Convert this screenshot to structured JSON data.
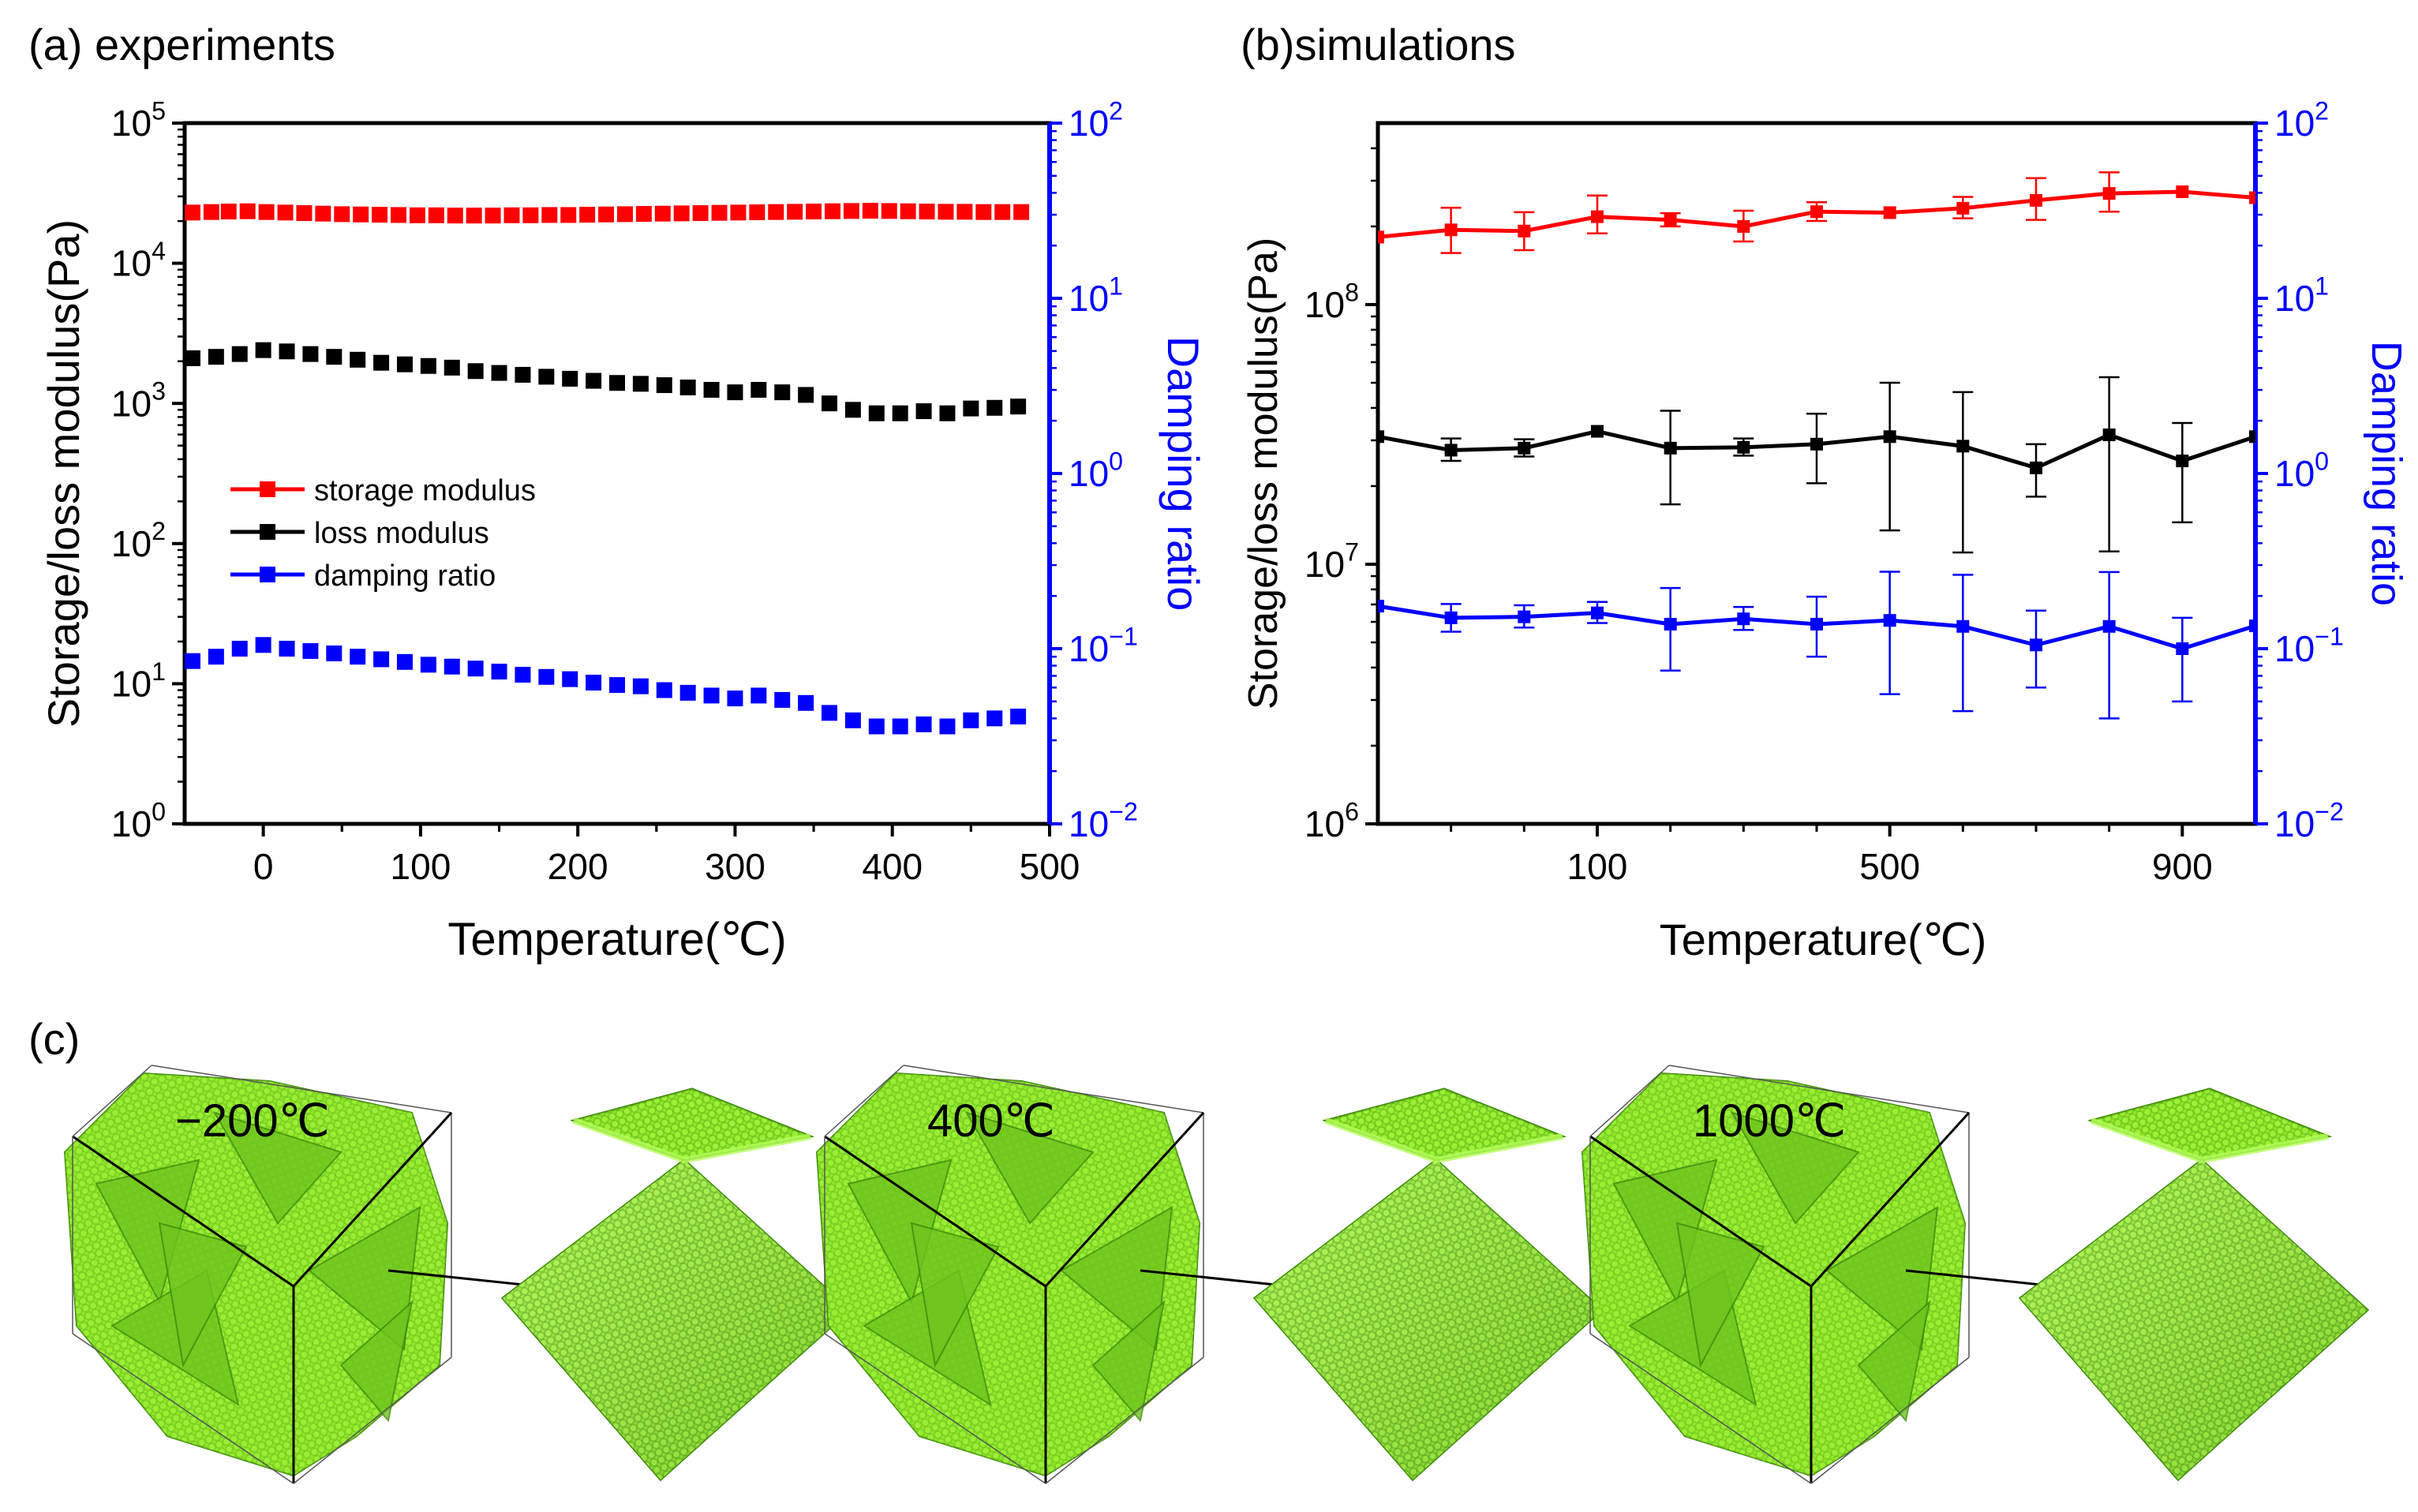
{
  "colors": {
    "storage": "#ff0000",
    "loss": "#000000",
    "damping": "#0000ff",
    "right_axis": "#0000ff",
    "atom_green": "#8ee62a",
    "atom_dark": "#3f8a0c"
  },
  "chart_data": [
    {
      "panel": "a",
      "type": "scatter",
      "title": "(a) experiments",
      "xlabel": "Temperature(℃)",
      "ylabel": "Storage/loss modulus(Pa)",
      "y2label": "Damping ratio",
      "xlim": [
        -50,
        500
      ],
      "xticks": [
        "0",
        "100",
        "200",
        "300",
        "400",
        "500"
      ],
      "xtick_values": [
        0,
        100,
        200,
        300,
        400,
        500
      ],
      "yscale": "log",
      "ylim": [
        1,
        100000
      ],
      "yticks": [
        {
          "base": "10",
          "exp": "0"
        },
        {
          "base": "10",
          "exp": "1"
        },
        {
          "base": "10",
          "exp": "2"
        },
        {
          "base": "10",
          "exp": "3"
        },
        {
          "base": "10",
          "exp": "4"
        },
        {
          "base": "10",
          "exp": "5"
        }
      ],
      "ytick_exps": [
        0,
        1,
        2,
        3,
        4,
        5
      ],
      "y2scale": "log",
      "y2lim": [
        0.01,
        100
      ],
      "y2ticks": [
        {
          "base": "10",
          "exp": "−2"
        },
        {
          "base": "10",
          "exp": "−1"
        },
        {
          "base": "10",
          "exp": "0"
        },
        {
          "base": "10",
          "exp": "1"
        },
        {
          "base": "10",
          "exp": "2"
        }
      ],
      "y2tick_exps": [
        -2,
        -1,
        0,
        1,
        2
      ],
      "legend_position": "center-left",
      "legend": [
        {
          "name": "storage modulus",
          "color": "#ff0000"
        },
        {
          "name": "loss modulus",
          "color": "#000000"
        },
        {
          "name": "damping ratio",
          "color": "#0000ff"
        }
      ],
      "series": [
        {
          "name": "storage modulus",
          "axis": "left",
          "color": "#ff0000",
          "x": [
            -45,
            -33,
            -22,
            -10,
            2,
            14,
            26,
            38,
            50,
            62,
            74,
            86,
            98,
            110,
            122,
            134,
            146,
            158,
            170,
            182,
            194,
            206,
            218,
            230,
            242,
            254,
            266,
            278,
            290,
            302,
            314,
            326,
            338,
            350,
            362,
            374,
            386,
            398,
            410,
            422,
            434,
            446,
            458,
            470,
            482
          ],
          "y": [
            23000,
            23200,
            23400,
            23500,
            23200,
            23000,
            22800,
            22600,
            22400,
            22300,
            22200,
            22100,
            22000,
            22000,
            21900,
            21900,
            21900,
            22000,
            22000,
            22100,
            22100,
            22200,
            22300,
            22400,
            22500,
            22600,
            22700,
            22800,
            22900,
            23000,
            23100,
            23200,
            23300,
            23400,
            23500,
            23600,
            23700,
            23600,
            23500,
            23400,
            23300,
            23300,
            23200,
            23200,
            23200
          ]
        },
        {
          "name": "loss modulus",
          "axis": "left",
          "color": "#000000",
          "x": [
            -45,
            -30,
            -15,
            0,
            15,
            30,
            45,
            60,
            75,
            90,
            105,
            120,
            135,
            150,
            165,
            180,
            195,
            210,
            225,
            240,
            255,
            270,
            285,
            300,
            315,
            330,
            345,
            360,
            375,
            390,
            405,
            420,
            435,
            450,
            465,
            480
          ],
          "y": [
            2100,
            2150,
            2250,
            2400,
            2350,
            2250,
            2150,
            2050,
            1950,
            1900,
            1850,
            1800,
            1700,
            1650,
            1600,
            1550,
            1500,
            1450,
            1400,
            1380,
            1350,
            1300,
            1250,
            1200,
            1250,
            1200,
            1150,
            1000,
            900,
            850,
            850,
            880,
            850,
            920,
            930,
            950
          ]
        },
        {
          "name": "damping ratio",
          "axis": "right",
          "color": "#0000ff",
          "x": [
            -45,
            -30,
            -15,
            0,
            15,
            30,
            45,
            60,
            75,
            90,
            105,
            120,
            135,
            150,
            165,
            180,
            195,
            210,
            225,
            240,
            255,
            270,
            285,
            300,
            315,
            330,
            345,
            360,
            375,
            390,
            405,
            420,
            435,
            450,
            465,
            480
          ],
          "y": [
            0.085,
            0.09,
            0.1,
            0.105,
            0.1,
            0.097,
            0.094,
            0.09,
            0.087,
            0.084,
            0.081,
            0.079,
            0.077,
            0.074,
            0.071,
            0.069,
            0.067,
            0.064,
            0.062,
            0.061,
            0.058,
            0.056,
            0.054,
            0.052,
            0.054,
            0.051,
            0.049,
            0.043,
            0.039,
            0.036,
            0.036,
            0.037,
            0.036,
            0.039,
            0.04,
            0.041
          ]
        }
      ]
    },
    {
      "panel": "b",
      "type": "line",
      "title": "(b)simulations",
      "xlabel": "Temperature(℃)",
      "ylabel": "Storage/loss modulus(Pa)",
      "y2label": "Damping ratio",
      "xlim": [
        -200,
        1000
      ],
      "xticks": [
        "100",
        "500",
        "900"
      ],
      "xtick_values": [
        100,
        500,
        900
      ],
      "minor_xtick_values": [
        -100,
        0,
        200,
        300,
        400,
        600,
        700,
        800
      ],
      "yscale": "log",
      "ylim": [
        1000000,
        500000000
      ],
      "yticks": [
        {
          "base": "10",
          "exp": "6"
        },
        {
          "base": "10",
          "exp": "7"
        },
        {
          "base": "10",
          "exp": "8"
        }
      ],
      "ytick_exps": [
        6,
        7,
        8
      ],
      "y2scale": "log",
      "y2lim": [
        0.01,
        100
      ],
      "y2ticks": [
        {
          "base": "10",
          "exp": "−2"
        },
        {
          "base": "10",
          "exp": "−1"
        },
        {
          "base": "10",
          "exp": "0"
        },
        {
          "base": "10",
          "exp": "1"
        },
        {
          "base": "10",
          "exp": "2"
        }
      ],
      "y2tick_exps": [
        -2,
        -1,
        0,
        1,
        2
      ],
      "series": [
        {
          "name": "storage modulus",
          "axis": "left",
          "color": "#ff0000",
          "x": [
            -200,
            -100,
            0,
            100,
            200,
            300,
            400,
            500,
            600,
            700,
            800,
            900,
            1000
          ],
          "y": [
            182000000,
            194000000,
            192000000,
            218000000,
            212000000,
            200000000,
            228000000,
            226000000,
            235000000,
            252000000,
            268000000,
            272000000,
            258000000
          ],
          "err_low": [
            null,
            36000000,
            30000000,
            30000000,
            12000000,
            25000000,
            18000000,
            null,
            20000000,
            40000000,
            40000000,
            null,
            null
          ],
          "err_high": [
            null,
            42000000,
            35000000,
            45000000,
            13000000,
            30000000,
            20000000,
            null,
            25000000,
            55000000,
            55000000,
            null,
            null
          ]
        },
        {
          "name": "loss modulus",
          "axis": "left",
          "color": "#000000",
          "x": [
            -200,
            -100,
            0,
            100,
            200,
            300,
            400,
            500,
            600,
            700,
            800,
            900,
            1000
          ],
          "y": [
            31000000,
            27500000,
            28000000,
            32500000,
            28000000,
            28200000,
            29000000,
            31000000,
            28500000,
            23500000,
            31500000,
            25000000,
            31000000
          ],
          "err_low": [
            null,
            2500000,
            2000000,
            null,
            11000000,
            2000000,
            8500000,
            17500000,
            17400000,
            5300000,
            20300000,
            10500000,
            null
          ],
          "err_high": [
            null,
            3000000,
            2300000,
            null,
            11000000,
            2300000,
            9000000,
            19000000,
            17500000,
            5500000,
            21000000,
            10000000,
            null
          ]
        },
        {
          "name": "damping ratio",
          "axis": "right",
          "color": "#0000ff",
          "x": [
            -200,
            -100,
            0,
            100,
            200,
            300,
            400,
            500,
            600,
            700,
            800,
            900,
            1000
          ],
          "y": [
            0.175,
            0.15,
            0.152,
            0.16,
            0.138,
            0.148,
            0.138,
            0.145,
            0.134,
            0.105,
            0.134,
            0.1,
            0.135
          ],
          "err_low": [
            null,
            0.025,
            0.02,
            0.02,
            0.063,
            0.02,
            0.048,
            0.09,
            0.09,
            0.045,
            0.094,
            0.05,
            null
          ],
          "err_high": [
            null,
            0.03,
            0.025,
            0.025,
            0.084,
            0.025,
            0.06,
            0.13,
            0.13,
            0.06,
            0.14,
            0.05,
            null
          ]
        }
      ]
    }
  ],
  "panel_c": {
    "label": "(c)",
    "temperatures": [
      "−200℃",
      "400℃",
      "1000℃"
    ]
  }
}
